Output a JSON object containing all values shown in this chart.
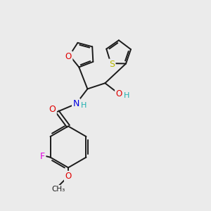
{
  "bg_color": "#ebebeb",
  "bond_color": "#1a1a1a",
  "bond_width": 1.4,
  "atom_colors": {
    "O": "#e00000",
    "N": "#0000e0",
    "F": "#e000e0",
    "S": "#b8b800",
    "C": "#1a1a1a",
    "H": "#20b0b0"
  },
  "font_size": 8.5,
  "fig_size": [
    3.0,
    3.0
  ],
  "dpi": 100
}
